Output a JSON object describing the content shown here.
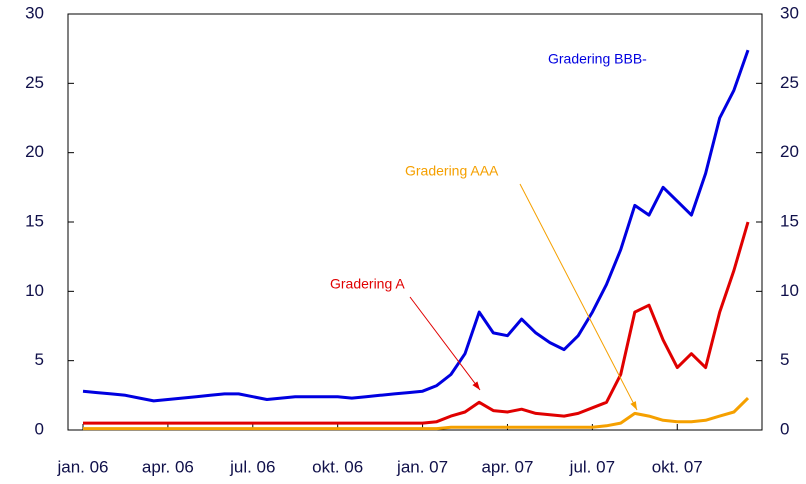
{
  "chart_data": {
    "type": "line",
    "categories": [
      "jan. 06",
      null,
      null,
      null,
      null,
      null,
      "apr. 06",
      null,
      null,
      null,
      null,
      null,
      "jul. 06",
      null,
      null,
      null,
      null,
      null,
      "okt. 06",
      null,
      null,
      null,
      null,
      null,
      "jan. 07",
      null,
      null,
      null,
      null,
      null,
      "apr. 07",
      null,
      null,
      null,
      null,
      null,
      "jul. 07",
      null,
      null,
      null,
      null,
      null,
      "okt. 07",
      null,
      null,
      null,
      null,
      null
    ],
    "series": [
      {
        "name": "Gradering BBB-",
        "color": "#0000e0",
        "values": [
          2.8,
          2.7,
          2.6,
          2.5,
          2.3,
          2.1,
          2.2,
          2.3,
          2.4,
          2.5,
          2.6,
          2.6,
          2.4,
          2.2,
          2.3,
          2.4,
          2.4,
          2.4,
          2.4,
          2.3,
          2.4,
          2.5,
          2.6,
          2.7,
          2.8,
          3.2,
          4.0,
          5.5,
          8.5,
          7.0,
          6.8,
          8.0,
          7.0,
          6.3,
          5.8,
          6.8,
          8.5,
          10.5,
          13,
          16.2,
          15.5,
          17.5,
          16.5,
          15.5,
          18.5,
          22.5,
          24.5,
          27.4
        ]
      },
      {
        "name": "Gradering A",
        "color": "#e00000",
        "values": [
          0.5,
          0.5,
          0.5,
          0.5,
          0.5,
          0.5,
          0.5,
          0.5,
          0.5,
          0.5,
          0.5,
          0.5,
          0.5,
          0.5,
          0.5,
          0.5,
          0.5,
          0.5,
          0.5,
          0.5,
          0.5,
          0.5,
          0.5,
          0.5,
          0.5,
          0.6,
          1.0,
          1.3,
          2.0,
          1.4,
          1.3,
          1.5,
          1.2,
          1.1,
          1.0,
          1.2,
          1.6,
          2.0,
          4.0,
          8.5,
          9.0,
          6.5,
          4.5,
          5.5,
          4.5,
          8.5,
          11.5,
          15.0
        ]
      },
      {
        "name": "Gradering AAA",
        "color": "#f5a000",
        "values": [
          0.1,
          0.1,
          0.1,
          0.1,
          0.1,
          0.1,
          0.1,
          0.1,
          0.1,
          0.1,
          0.1,
          0.1,
          0.1,
          0.1,
          0.1,
          0.1,
          0.1,
          0.1,
          0.1,
          0.1,
          0.1,
          0.1,
          0.1,
          0.1,
          0.1,
          0.1,
          0.2,
          0.2,
          0.2,
          0.2,
          0.2,
          0.2,
          0.2,
          0.2,
          0.2,
          0.2,
          0.2,
          0.3,
          0.5,
          1.2,
          1.0,
          0.7,
          0.6,
          0.6,
          0.7,
          1.0,
          1.3,
          2.3
        ]
      }
    ],
    "ylim": [
      0,
      30
    ],
    "yticks": [
      0,
      5,
      10,
      15,
      20,
      25,
      30
    ],
    "y2lim": [
      0,
      30
    ],
    "y2ticks": [
      0,
      5,
      10,
      15,
      20,
      25,
      30
    ]
  }
}
